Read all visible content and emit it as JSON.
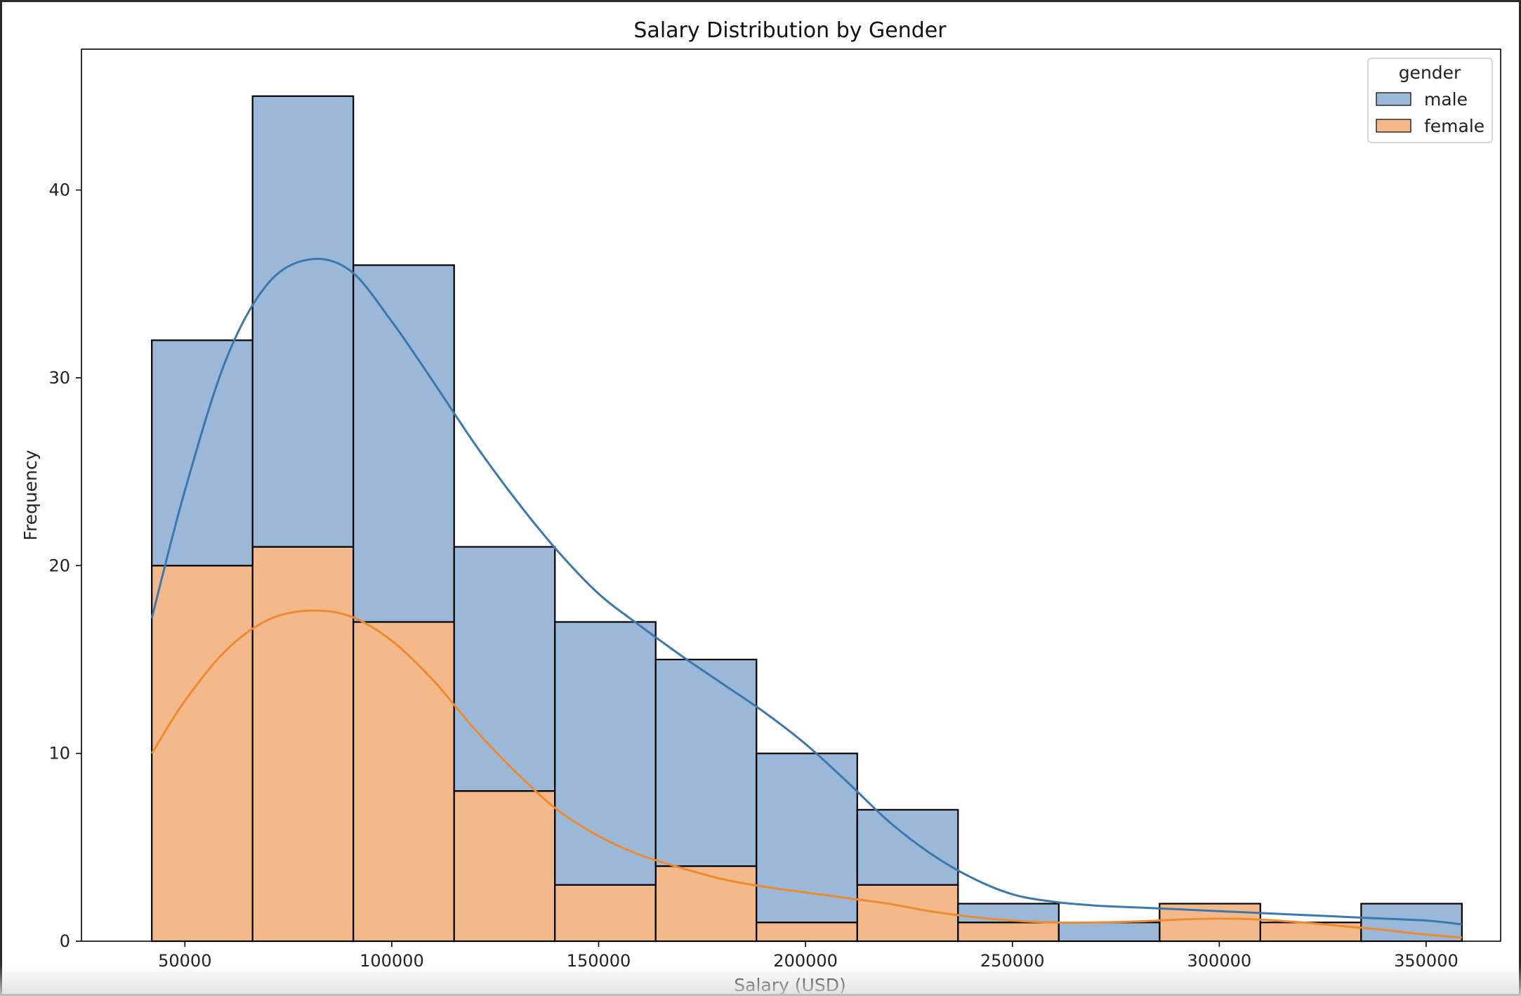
{
  "chart_data": {
    "type": "histogram",
    "title": "Salary Distribution by Gender",
    "xlabel": "Salary (USD)",
    "ylabel": "Frequency",
    "xlim": [
      25000,
      368000
    ],
    "ylim": [
      0,
      47.5
    ],
    "xticks": [
      50000,
      100000,
      150000,
      200000,
      250000,
      300000,
      350000
    ],
    "yticks": [
      0,
      10,
      20,
      30,
      40
    ],
    "bin_edges": [
      42000,
      66357,
      90714,
      115071,
      139429,
      163786,
      188143,
      212500,
      236857,
      261214,
      285571,
      309929,
      334286,
      358643
    ],
    "stacked": true,
    "grid": false,
    "legend": {
      "title": "gender",
      "placement": "top-right"
    },
    "series": [
      {
        "name": "female",
        "color": "#F4B98A",
        "kde_color": "#EE8A2F",
        "values": [
          20,
          21,
          17,
          8,
          3,
          4,
          1,
          3,
          1,
          0,
          2,
          1,
          0
        ]
      },
      {
        "name": "male",
        "color": "#9BB8D8",
        "kde_color": "#3A78AE",
        "values": [
          12,
          24,
          19,
          13,
          14,
          11,
          9,
          4,
          1,
          1,
          0,
          0,
          2
        ]
      }
    ],
    "kde": [
      {
        "name": "male",
        "points": [
          [
            42000,
            17.2
          ],
          [
            50000,
            24
          ],
          [
            60000,
            31
          ],
          [
            70000,
            35
          ],
          [
            80000,
            36.3
          ],
          [
            90000,
            35.7
          ],
          [
            100000,
            33
          ],
          [
            110000,
            29.8
          ],
          [
            120000,
            26.5
          ],
          [
            130000,
            23.5
          ],
          [
            140000,
            20.8
          ],
          [
            150000,
            18.5
          ],
          [
            160000,
            16.8
          ],
          [
            170000,
            15.2
          ],
          [
            180000,
            13.7
          ],
          [
            190000,
            12.2
          ],
          [
            200000,
            10.5
          ],
          [
            210000,
            8.5
          ],
          [
            220000,
            6.4
          ],
          [
            230000,
            4.7
          ],
          [
            240000,
            3.4
          ],
          [
            250000,
            2.5
          ],
          [
            260000,
            2.1
          ],
          [
            270000,
            1.9
          ],
          [
            280000,
            1.8
          ],
          [
            290000,
            1.7
          ],
          [
            300000,
            1.6
          ],
          [
            310000,
            1.5
          ],
          [
            320000,
            1.4
          ],
          [
            330000,
            1.3
          ],
          [
            340000,
            1.2
          ],
          [
            350000,
            1.1
          ],
          [
            358643,
            0.9
          ]
        ]
      },
      {
        "name": "female",
        "points": [
          [
            42000,
            10
          ],
          [
            50000,
            12.8
          ],
          [
            60000,
            15.5
          ],
          [
            70000,
            17.1
          ],
          [
            80000,
            17.6
          ],
          [
            90000,
            17.3
          ],
          [
            100000,
            16
          ],
          [
            110000,
            13.9
          ],
          [
            120000,
            11.3
          ],
          [
            130000,
            9
          ],
          [
            140000,
            7
          ],
          [
            150000,
            5.6
          ],
          [
            160000,
            4.6
          ],
          [
            170000,
            3.9
          ],
          [
            180000,
            3.3
          ],
          [
            190000,
            2.9
          ],
          [
            200000,
            2.6
          ],
          [
            210000,
            2.3
          ],
          [
            220000,
            2
          ],
          [
            230000,
            1.6
          ],
          [
            240000,
            1.3
          ],
          [
            250000,
            1.1
          ],
          [
            260000,
            1
          ],
          [
            270000,
            1
          ],
          [
            280000,
            1.05
          ],
          [
            290000,
            1.15
          ],
          [
            300000,
            1.2
          ],
          [
            310000,
            1.15
          ],
          [
            320000,
            1
          ],
          [
            330000,
            0.8
          ],
          [
            340000,
            0.6
          ],
          [
            350000,
            0.35
          ],
          [
            358643,
            0.2
          ]
        ]
      }
    ]
  }
}
